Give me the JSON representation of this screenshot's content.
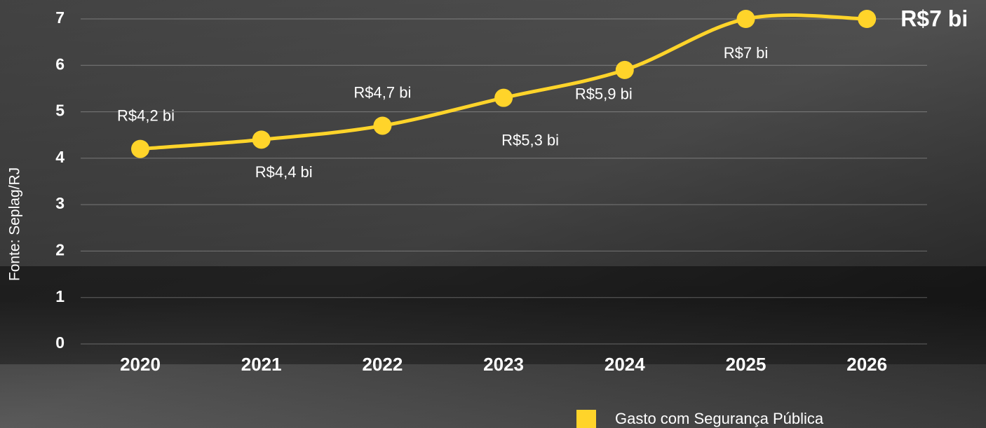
{
  "chart_data": {
    "type": "line",
    "ylabel": "Fonte: Seplag/RJ",
    "categories": [
      "2020",
      "2021",
      "2022",
      "2023",
      "2024",
      "2025",
      "2026"
    ],
    "series": [
      {
        "name": "Gasto com Segurança Pública",
        "color": "#ffd42a",
        "values": [
          4.2,
          4.4,
          4.7,
          5.3,
          5.9,
          7,
          7
        ],
        "value_labels": [
          "R$4,2 bi",
          "R$4,4 bi",
          "R$4,7 bi",
          "R$5,3 bi",
          "R$5,9 bi",
          "R$7 bi",
          "R$7 bi"
        ]
      }
    ],
    "ylim": [
      0,
      7
    ],
    "yticks": [
      0,
      1,
      2,
      3,
      4,
      5,
      6,
      7
    ],
    "grid": true
  }
}
